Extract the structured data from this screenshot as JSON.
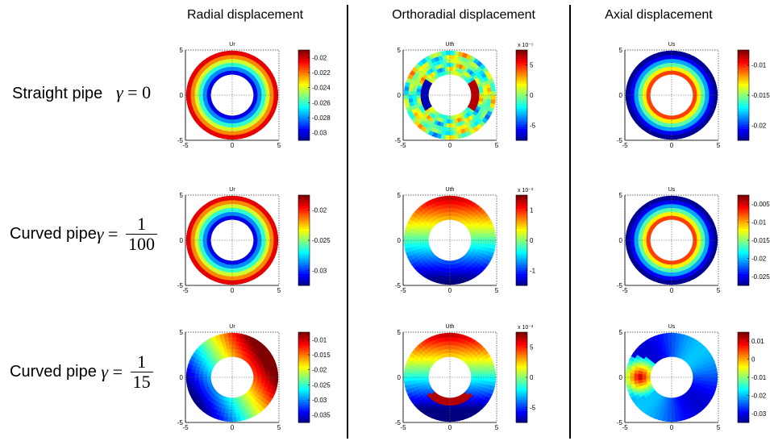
{
  "columns": [
    {
      "title": "Radial displacement"
    },
    {
      "title": "Orthoradial displacement"
    },
    {
      "title": "Axial displacement"
    }
  ],
  "rows": [
    {
      "label_text": "Straight pipe",
      "gamma_symbol": "γ",
      "equals": "=",
      "value": "0"
    },
    {
      "label_text": "Curved pipe",
      "gamma_symbol": "γ",
      "equals": "=",
      "numerator": "1",
      "denominator": "100"
    },
    {
      "label_text": "Curved pipe",
      "gamma_symbol": "γ",
      "equals": "=",
      "numerator": "1",
      "denominator": "15"
    }
  ],
  "axis_ticks": [
    "-5",
    "0",
    "5"
  ],
  "panels": [
    {
      "title": "Ur",
      "pattern": "radial_in",
      "exponent": "",
      "colorbar_ticks": [
        "-0.02",
        "-0.022",
        "-0.024",
        "-0.026",
        "-0.028",
        "-0.03"
      ]
    },
    {
      "title": "Uth",
      "pattern": "noisy",
      "exponent": "x 10⁻⁵",
      "colorbar_ticks": [
        "5",
        "0",
        "-5"
      ]
    },
    {
      "title": "Us",
      "pattern": "radial_out",
      "exponent": "",
      "colorbar_ticks": [
        "-0.01",
        "-0.015",
        "-0.02"
      ]
    },
    {
      "title": "Ur",
      "pattern": "radial_in",
      "exponent": "",
      "colorbar_ticks": [
        "-0.02",
        "-0.025",
        "-0.03"
      ]
    },
    {
      "title": "Uth",
      "pattern": "top_bottom",
      "exponent": "x 10⁻³",
      "colorbar_ticks": [
        "1",
        "0",
        "-1"
      ]
    },
    {
      "title": "Us",
      "pattern": "radial_out",
      "exponent": "",
      "colorbar_ticks": [
        "-0.005",
        "-0.01",
        "-0.015",
        "-0.02",
        "-0.025"
      ]
    },
    {
      "title": "Ur",
      "pattern": "left_right",
      "exponent": "",
      "colorbar_ticks": [
        "-0.01",
        "-0.015",
        "-0.02",
        "-0.025",
        "-0.03",
        "-0.035"
      ]
    },
    {
      "title": "Uth",
      "pattern": "top_bottom_shift",
      "exponent": "x 10⁻³",
      "colorbar_ticks": [
        "5",
        "0",
        "-5"
      ]
    },
    {
      "title": "Us",
      "pattern": "left_hot",
      "exponent": "",
      "colorbar_ticks": [
        "0.01",
        "0",
        "-0.01",
        "-0.02",
        "-0.03"
      ]
    }
  ]
}
